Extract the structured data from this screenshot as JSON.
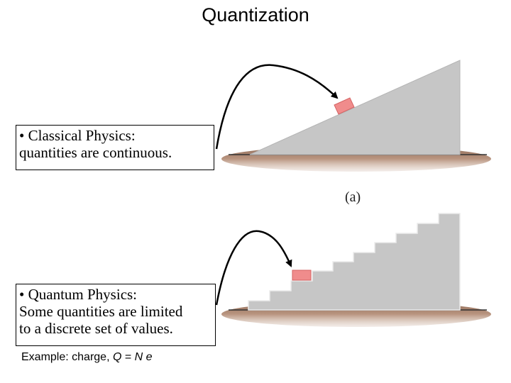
{
  "title": "Quantization",
  "classical": {
    "line1": "• Classical Physics:",
    "line2": "quantities are continuous."
  },
  "quantum": {
    "line1": "• Quantum Physics:",
    "line2": "Some quantities are limited",
    "line3": "to a discrete set of values."
  },
  "example": {
    "prefix": "Example: charge, ",
    "q": "Q",
    "eq": " = ",
    "n": "N",
    "e": "e"
  },
  "figure_label": "(a)",
  "colors": {
    "ramp": "#c6c6c6",
    "ramp_edge": "#b4b4b4",
    "ground": "#a9826a",
    "block": "#f08c8c",
    "block_edge": "#d46262",
    "arrow": "#000000"
  }
}
